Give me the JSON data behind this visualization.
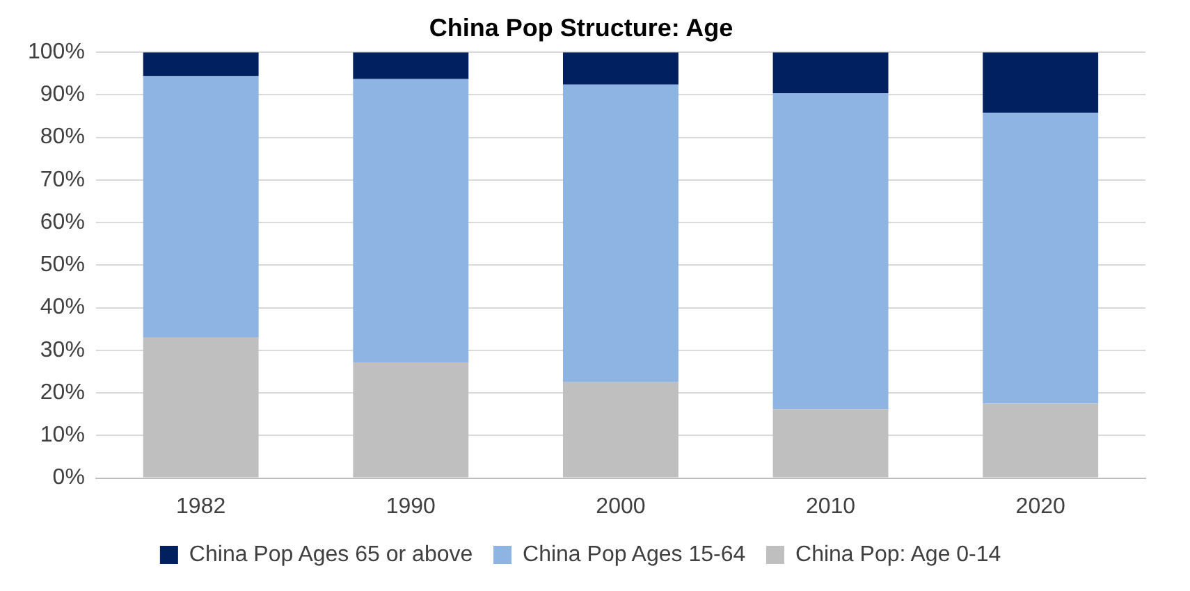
{
  "chart_data": {
    "type": "bar",
    "title": "China Pop Structure: Age",
    "categories": [
      "1982",
      "1990",
      "2000",
      "2010",
      "2020"
    ],
    "stacked": true,
    "series": [
      {
        "name": "China Pop: Age 0-14",
        "color": "#bfbfbf",
        "values": [
          33.1,
          27.2,
          22.5,
          16.2,
          17.5
        ]
      },
      {
        "name": "China Pop Ages 15-64",
        "color": "#8eb4e3",
        "values": [
          61.3,
          66.5,
          69.9,
          74.2,
          68.3
        ]
      },
      {
        "name": "China Pop Ages 65 or above",
        "color": "#002060",
        "values": [
          5.6,
          6.3,
          7.6,
          9.6,
          14.2
        ]
      }
    ],
    "ylim": [
      0,
      100
    ],
    "yticks": [
      {
        "value": 0,
        "label": "0%"
      },
      {
        "value": 10,
        "label": "10%"
      },
      {
        "value": 20,
        "label": "20%"
      },
      {
        "value": 30,
        "label": "30%"
      },
      {
        "value": 40,
        "label": "40%"
      },
      {
        "value": 50,
        "label": "50%"
      },
      {
        "value": 60,
        "label": "60%"
      },
      {
        "value": 70,
        "label": "70%"
      },
      {
        "value": 80,
        "label": "80%"
      },
      {
        "value": 90,
        "label": "90%"
      },
      {
        "value": 100,
        "label": "100%"
      }
    ],
    "grid": "y",
    "legend": "bottom"
  }
}
